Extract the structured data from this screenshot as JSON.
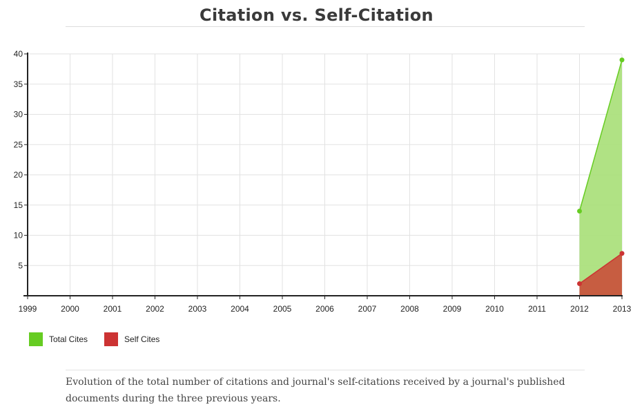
{
  "header": {
    "title": "Citation vs. Self-Citation"
  },
  "chart_data": {
    "type": "area",
    "x": [
      1999,
      2000,
      2001,
      2002,
      2003,
      2004,
      2005,
      2006,
      2007,
      2008,
      2009,
      2010,
      2011,
      2012,
      2013
    ],
    "x_tick_labels": [
      "1999",
      "2000",
      "2001",
      "2002",
      "2003",
      "2004",
      "2005",
      "2006",
      "2007",
      "2008",
      "2009",
      "2010",
      "2011",
      "2012",
      "2013"
    ],
    "y_tick_labels": [
      "5",
      "10",
      "15",
      "20",
      "25",
      "30",
      "35",
      "40"
    ],
    "y_ticks": [
      5,
      10,
      15,
      20,
      25,
      30,
      35,
      40
    ],
    "ylim": [
      0,
      40
    ],
    "xlim": [
      1999,
      2013
    ],
    "grid": true,
    "legend_position": "bottom-left",
    "series": [
      {
        "name": "Total Cites",
        "color": "#66cc22",
        "fill": "#a9df7a",
        "points": [
          [
            2012,
            14
          ],
          [
            2013,
            39
          ]
        ]
      },
      {
        "name": "Self Cites",
        "color": "#cc3333",
        "fill": "#c9513c",
        "points": [
          [
            2012,
            2
          ],
          [
            2013,
            7
          ]
        ]
      }
    ]
  },
  "legend": [
    {
      "label": "Total Cites",
      "color": "#66cc22"
    },
    {
      "label": "Self Cites",
      "color": "#cc3333"
    }
  ],
  "description": "Evolution of the total number of citations and journal's self-citations received by a journal's published documents during the three previous years."
}
